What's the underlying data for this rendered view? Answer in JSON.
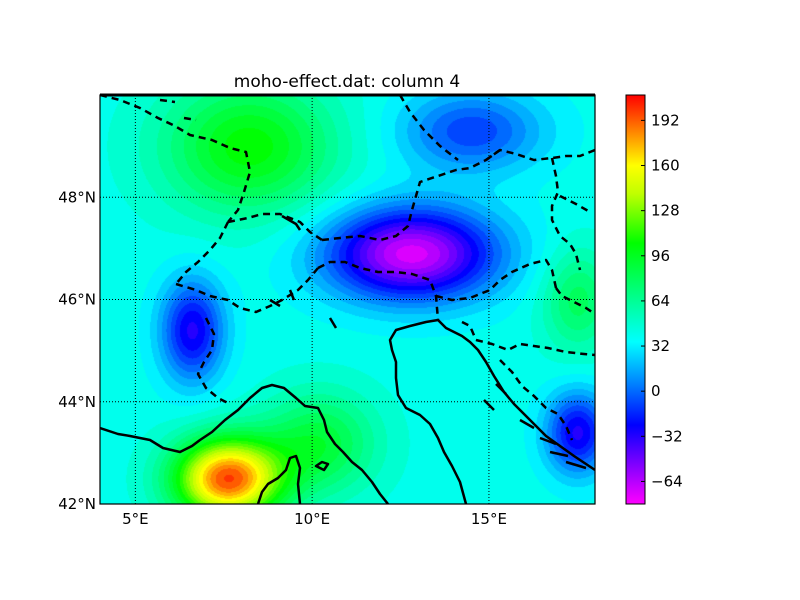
{
  "chart_data": {
    "type": "heatmap",
    "title": "moho-effect.dat: column 4",
    "xlabel": "",
    "ylabel": "",
    "projection": "map",
    "xlim": [
      4,
      18
    ],
    "ylim": [
      42,
      50
    ],
    "x_ticks": [
      {
        "value": 5,
        "label": "5°E"
      },
      {
        "value": 10,
        "label": "10°E"
      },
      {
        "value": 15,
        "label": "15°E"
      }
    ],
    "y_ticks": [
      {
        "value": 42,
        "label": "42°N"
      },
      {
        "value": 44,
        "label": "44°N"
      },
      {
        "value": 46,
        "label": "46°N"
      },
      {
        "value": 48,
        "label": "48°N"
      }
    ],
    "grid": true,
    "grid_style": "dotted",
    "colormap": "hsv-like (magenta → blue → cyan → green → yellow → red)",
    "colorbar": {
      "range": [
        -80,
        210
      ],
      "ticks": [
        192,
        160,
        128,
        96,
        64,
        32,
        0,
        -32,
        -64
      ],
      "stops": [
        {
          "value": -80,
          "color": "#ff00ff"
        },
        {
          "value": -52,
          "color": "#8000ff"
        },
        {
          "value": -24,
          "color": "#0000ff"
        },
        {
          "value": 5,
          "color": "#0080ff"
        },
        {
          "value": 35,
          "color": "#00ffff"
        },
        {
          "value": 70,
          "color": "#00ff80"
        },
        {
          "value": 105,
          "color": "#00ff00"
        },
        {
          "value": 140,
          "color": "#c0ff00"
        },
        {
          "value": 160,
          "color": "#ffff00"
        },
        {
          "value": 185,
          "color": "#ff8000"
        },
        {
          "value": 210,
          "color": "#ff0000"
        }
      ]
    },
    "field_features": [
      {
        "name": "central low",
        "lon": 12.8,
        "lat": 46.9,
        "value": -72,
        "radius_lon": 2.4,
        "radius_lat": 0.9
      },
      {
        "name": "western low",
        "lon": 6.6,
        "lat": 45.4,
        "value": -30,
        "radius_lon": 0.9,
        "radius_lat": 1.0
      },
      {
        "name": "north-east low",
        "lon": 14.5,
        "lat": 49.3,
        "value": -10,
        "radius_lon": 2.0,
        "radius_lat": 0.8
      },
      {
        "name": "south-east low",
        "lon": 17.5,
        "lat": 43.4,
        "value": -30,
        "radius_lon": 0.9,
        "radius_lat": 0.8
      },
      {
        "name": "northern high",
        "lon": 8.2,
        "lat": 49.0,
        "value": 105,
        "radius_lon": 2.4,
        "radius_lat": 1.3
      },
      {
        "name": "south-west high",
        "lon": 7.6,
        "lat": 42.5,
        "value": 195,
        "radius_lon": 1.5,
        "radius_lat": 0.8
      },
      {
        "name": "eastern high",
        "lon": 17.5,
        "lat": 46.0,
        "value": 80,
        "radius_lon": 1.0,
        "radius_lat": 1.0
      },
      {
        "name": "south-central high",
        "lon": 10.2,
        "lat": 43.2,
        "value": 90,
        "radius_lon": 1.6,
        "radius_lat": 1.0
      }
    ],
    "field_background": 40,
    "borders": {
      "coastlines_style": "solid",
      "country_borders_style": "dashed",
      "color": "#000000"
    }
  }
}
